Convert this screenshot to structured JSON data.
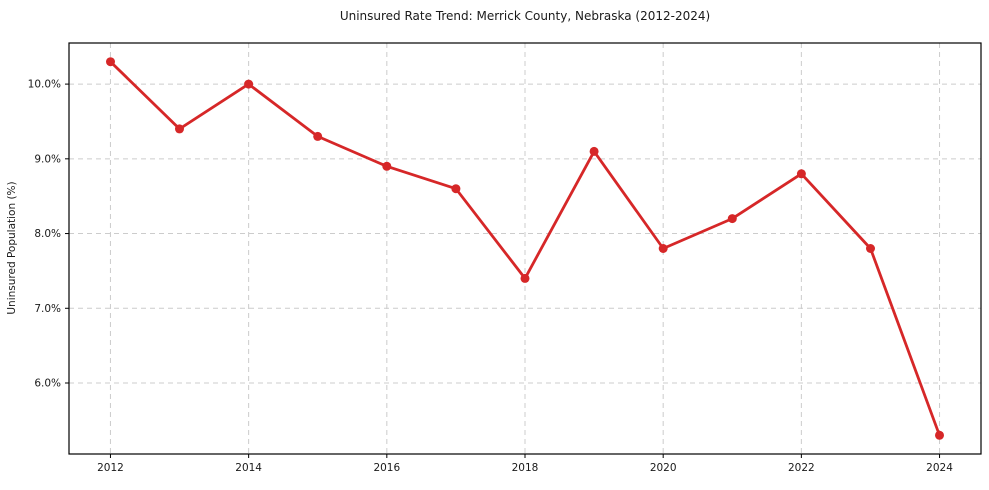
{
  "chart_data": {
    "type": "line",
    "title": "Uninsured Rate Trend: Merrick County, Nebraska (2012-2024)",
    "xlabel": "",
    "ylabel": "Uninsured Population (%)",
    "x": [
      2012,
      2013,
      2014,
      2015,
      2016,
      2017,
      2018,
      2019,
      2020,
      2021,
      2022,
      2023,
      2024
    ],
    "values": [
      10.3,
      9.4,
      10.0,
      9.3,
      8.9,
      8.6,
      7.4,
      9.1,
      7.8,
      8.2,
      8.8,
      7.8,
      5.3
    ],
    "xlim": [
      2011.4,
      2024.6
    ],
    "ylim": [
      5.05,
      10.55
    ],
    "xticks": [
      2012,
      2014,
      2016,
      2018,
      2020,
      2022,
      2024
    ],
    "xtick_labels": [
      "2012",
      "2014",
      "2016",
      "2018",
      "2020",
      "2022",
      "2024"
    ],
    "yticks": [
      6,
      7,
      8,
      9,
      10
    ],
    "ytick_labels": [
      "6.0%",
      "7.0%",
      "8.0%",
      "9.0%",
      "10.0%"
    ],
    "grid": true,
    "legend": "none",
    "line_color": "#d62728",
    "marker": "circle",
    "grid_color": "#cccccc"
  }
}
